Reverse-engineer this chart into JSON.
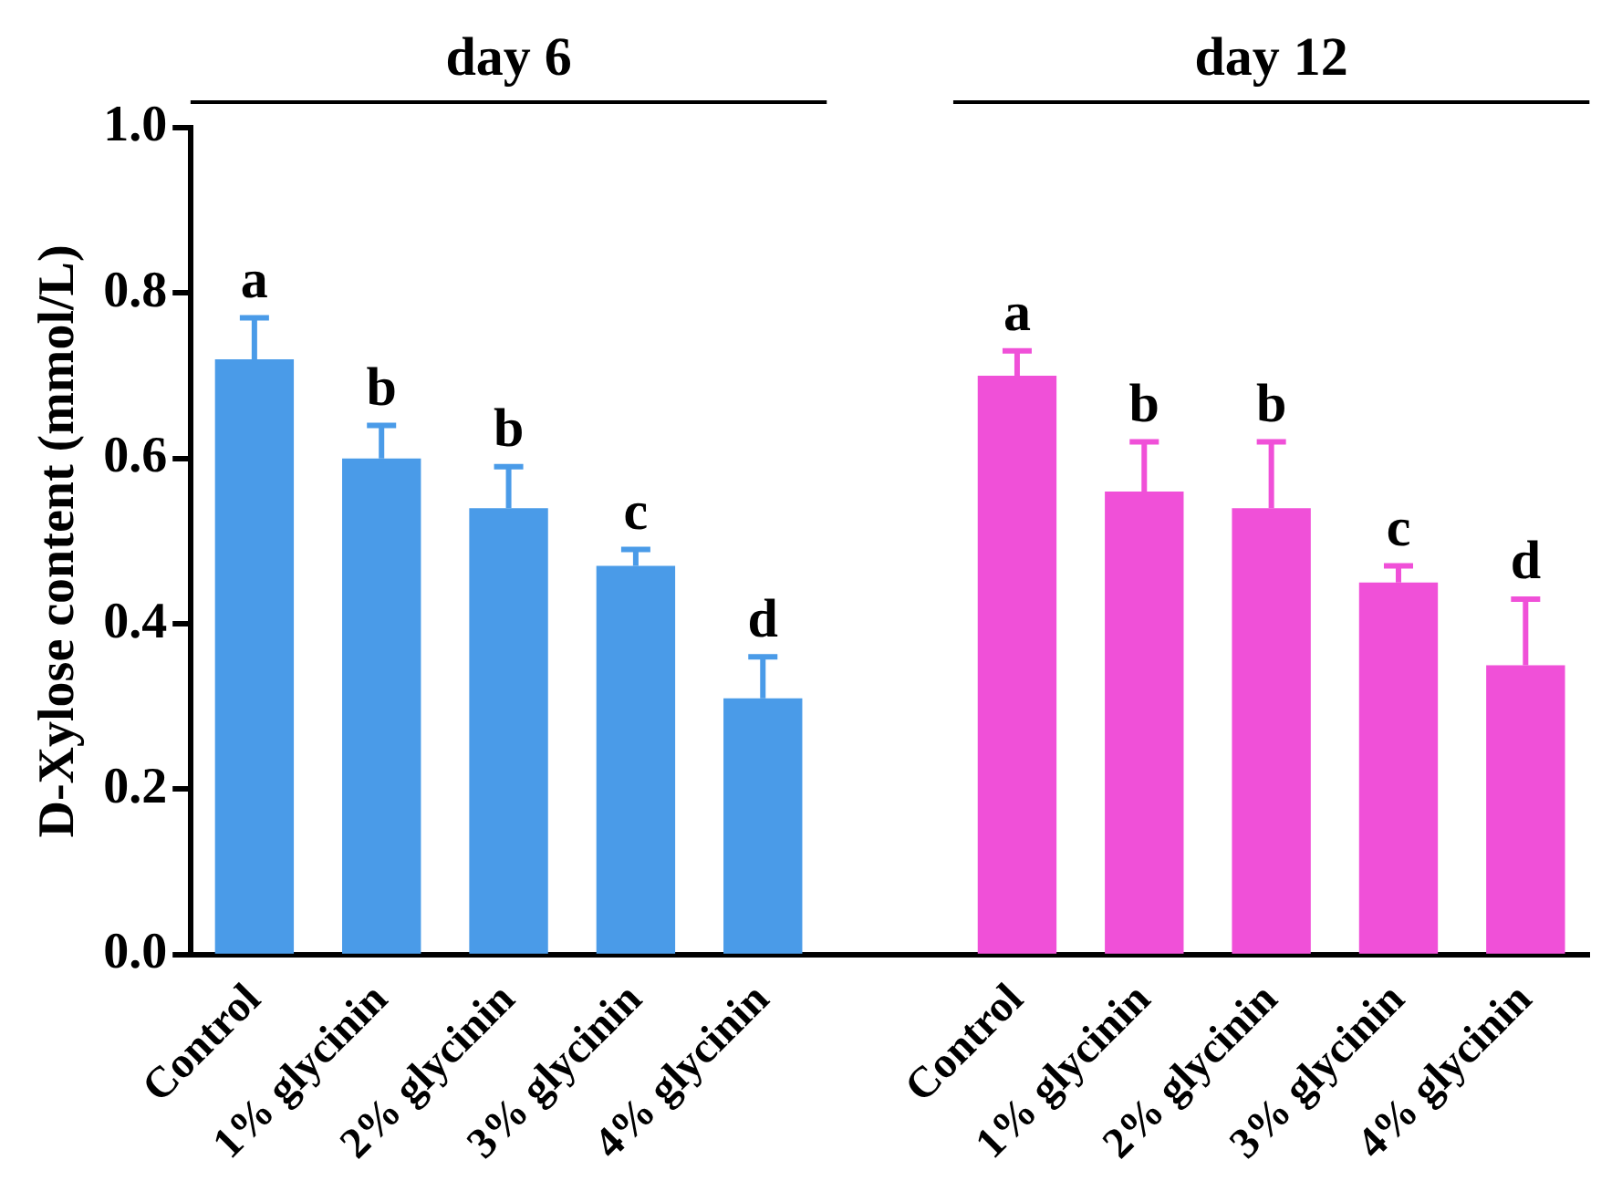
{
  "chart_data": {
    "type": "bar",
    "ylabel": "D-Xylose content (mmol/L)",
    "categories": [
      "Control",
      "1% glycinin",
      "2% glycinin",
      "3% glycinin",
      "4% glycinin",
      null,
      "Control",
      "1% glycinin",
      "2% glycinin",
      "3% glycinin",
      "4% glycinin"
    ],
    "series": [
      {
        "color": "#4a9be8",
        "values": [
          0.72,
          0.6,
          0.54,
          0.47,
          0.31,
          null,
          null,
          null,
          null,
          null,
          null
        ],
        "errors": [
          0.05,
          0.04,
          0.05,
          0.02,
          0.05,
          null,
          null,
          null,
          null,
          null,
          null
        ],
        "value_labels": [
          "a",
          "b",
          "b",
          "c",
          "d",
          null,
          null,
          null,
          null,
          null,
          null
        ]
      },
      {
        "color": "#f050d8",
        "values": [
          null,
          null,
          null,
          null,
          null,
          null,
          0.7,
          0.56,
          0.54,
          0.45,
          0.35
        ],
        "errors": [
          null,
          null,
          null,
          null,
          null,
          null,
          0.03,
          0.06,
          0.08,
          0.02,
          0.08
        ],
        "value_labels": [
          null,
          null,
          null,
          null,
          null,
          null,
          "a",
          "b",
          "b",
          "c",
          "d"
        ]
      }
    ],
    "ylim": [
      0,
      1
    ],
    "yticks": [
      {
        "value": 0,
        "label": "0.0"
      },
      {
        "value": 0.2,
        "label": "0.2"
      },
      {
        "value": 0.4,
        "label": "0.4"
      },
      {
        "value": 0.6,
        "label": "0.6"
      },
      {
        "value": 0.8,
        "label": "0.8"
      },
      {
        "value": 1,
        "label": "1.0"
      }
    ],
    "annotations": [
      "day 6",
      "day 12"
    ],
    "grid": false,
    "legend": false
  }
}
